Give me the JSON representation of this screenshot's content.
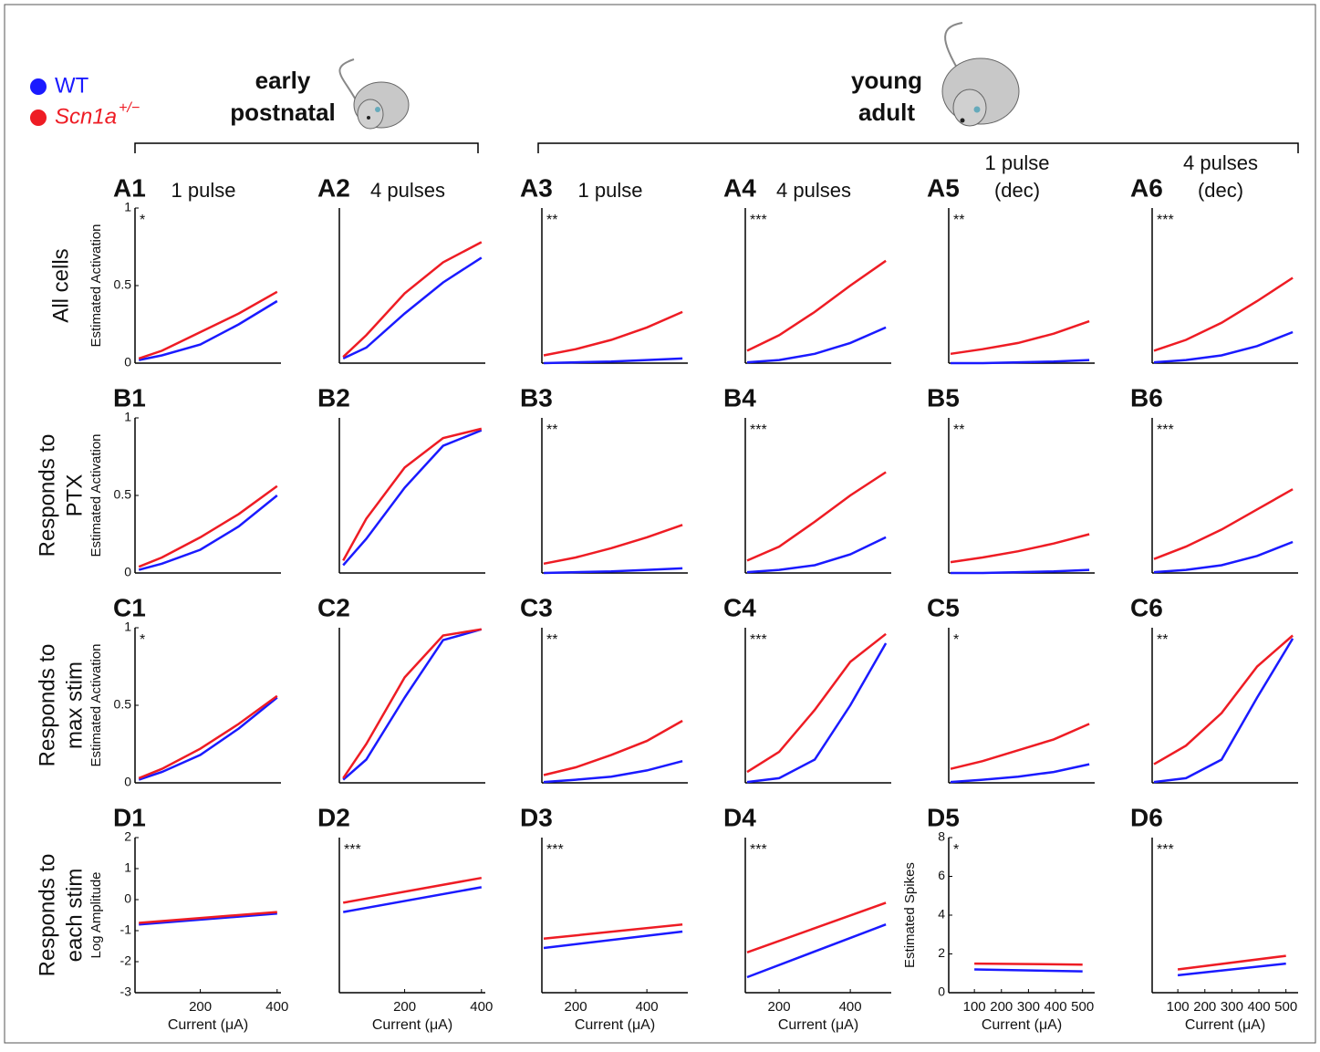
{
  "legend": [
    {
      "name": "WT",
      "color": "#1a1aff"
    },
    {
      "name": "Scn1a",
      "sup": "+/−",
      "color": "#ee1c24"
    }
  ],
  "groups": [
    {
      "label": [
        "early",
        "postnatal"
      ]
    },
    {
      "label": [
        "young",
        "adult"
      ]
    }
  ],
  "row_labels": [
    [
      "All cells"
    ],
    [
      "Responds to",
      "PTX"
    ],
    [
      "Responds to",
      "max stim"
    ],
    [
      "Responds to",
      "each stim"
    ]
  ],
  "chart_data": [
    {
      "type": "line",
      "label": "A1",
      "subtitle": [
        "1 pulse"
      ],
      "annotation": "*",
      "ylabel": "Estimated Activation",
      "x": [
        40,
        100,
        200,
        300,
        400
      ],
      "xlim": [
        30,
        410
      ],
      "ylim": [
        0,
        1
      ],
      "yticks": [
        0,
        0.5,
        1
      ],
      "series": [
        {
          "color": "#1a1aff",
          "values": [
            0.02,
            0.05,
            0.12,
            0.25,
            0.4
          ]
        },
        {
          "color": "#ee1c24",
          "values": [
            0.03,
            0.08,
            0.2,
            0.32,
            0.46
          ]
        }
      ]
    },
    {
      "type": "line",
      "label": "A2",
      "subtitle": [
        "4 pulses"
      ],
      "x": [
        40,
        100,
        200,
        300,
        400
      ],
      "xlim": [
        30,
        410
      ],
      "ylim": [
        0,
        1
      ],
      "series": [
        {
          "color": "#1a1aff",
          "values": [
            0.03,
            0.1,
            0.32,
            0.52,
            0.68
          ]
        },
        {
          "color": "#ee1c24",
          "values": [
            0.04,
            0.18,
            0.45,
            0.65,
            0.78
          ]
        }
      ]
    },
    {
      "type": "line",
      "label": "A3",
      "subtitle": [
        "1 pulse"
      ],
      "annotation": "**",
      "x": [
        110,
        200,
        300,
        400,
        500
      ],
      "xlim": [
        105,
        515
      ],
      "ylim": [
        0,
        1
      ],
      "series": [
        {
          "color": "#1a1aff",
          "values": [
            0,
            0.005,
            0.01,
            0.02,
            0.03
          ]
        },
        {
          "color": "#ee1c24",
          "values": [
            0.05,
            0.09,
            0.15,
            0.23,
            0.33
          ]
        }
      ]
    },
    {
      "type": "line",
      "label": "A4",
      "subtitle": [
        "4 pulses"
      ],
      "annotation": "***",
      "x": [
        110,
        200,
        300,
        400,
        500
      ],
      "xlim": [
        105,
        515
      ],
      "ylim": [
        0,
        1
      ],
      "series": [
        {
          "color": "#1a1aff",
          "values": [
            0.005,
            0.02,
            0.06,
            0.13,
            0.23
          ]
        },
        {
          "color": "#ee1c24",
          "values": [
            0.08,
            0.18,
            0.33,
            0.5,
            0.66
          ]
        }
      ]
    },
    {
      "type": "line",
      "label": "A5",
      "subtitle": [
        "1 pulse",
        "(dec)"
      ],
      "annotation": "**",
      "x": [
        110,
        200,
        300,
        400,
        500
      ],
      "xlim": [
        105,
        515
      ],
      "ylim": [
        0,
        1
      ],
      "series": [
        {
          "color": "#1a1aff",
          "values": [
            0,
            0,
            0.005,
            0.01,
            0.02
          ]
        },
        {
          "color": "#ee1c24",
          "values": [
            0.06,
            0.09,
            0.13,
            0.19,
            0.27
          ]
        }
      ]
    },
    {
      "type": "line",
      "label": "A6",
      "subtitle": [
        "4 pulses",
        "(dec)"
      ],
      "annotation": "***",
      "x": [
        110,
        200,
        300,
        400,
        500
      ],
      "xlim": [
        105,
        515
      ],
      "ylim": [
        0,
        1
      ],
      "series": [
        {
          "color": "#1a1aff",
          "values": [
            0.005,
            0.02,
            0.05,
            0.11,
            0.2
          ]
        },
        {
          "color": "#ee1c24",
          "values": [
            0.08,
            0.15,
            0.26,
            0.4,
            0.55
          ]
        }
      ]
    },
    {
      "type": "line",
      "label": "B1",
      "ylabel": "Estimated Activation",
      "x": [
        40,
        100,
        200,
        300,
        400
      ],
      "xlim": [
        30,
        410
      ],
      "ylim": [
        0,
        1
      ],
      "yticks": [
        0,
        0.5,
        1
      ],
      "series": [
        {
          "color": "#1a1aff",
          "values": [
            0.02,
            0.06,
            0.15,
            0.3,
            0.5
          ]
        },
        {
          "color": "#ee1c24",
          "values": [
            0.04,
            0.1,
            0.23,
            0.38,
            0.56
          ]
        }
      ]
    },
    {
      "type": "line",
      "label": "B2",
      "x": [
        40,
        100,
        200,
        300,
        400
      ],
      "xlim": [
        30,
        410
      ],
      "ylim": [
        0,
        1
      ],
      "series": [
        {
          "color": "#1a1aff",
          "values": [
            0.05,
            0.22,
            0.55,
            0.82,
            0.92
          ]
        },
        {
          "color": "#ee1c24",
          "values": [
            0.08,
            0.35,
            0.68,
            0.87,
            0.93
          ]
        }
      ]
    },
    {
      "type": "line",
      "label": "B3",
      "annotation": "**",
      "x": [
        110,
        200,
        300,
        400,
        500
      ],
      "xlim": [
        105,
        515
      ],
      "ylim": [
        0,
        1
      ],
      "series": [
        {
          "color": "#1a1aff",
          "values": [
            0,
            0.005,
            0.01,
            0.02,
            0.03
          ]
        },
        {
          "color": "#ee1c24",
          "values": [
            0.06,
            0.1,
            0.16,
            0.23,
            0.31
          ]
        }
      ]
    },
    {
      "type": "line",
      "label": "B4",
      "annotation": "***",
      "x": [
        110,
        200,
        300,
        400,
        500
      ],
      "xlim": [
        105,
        515
      ],
      "ylim": [
        0,
        1
      ],
      "series": [
        {
          "color": "#1a1aff",
          "values": [
            0.005,
            0.02,
            0.05,
            0.12,
            0.23
          ]
        },
        {
          "color": "#ee1c24",
          "values": [
            0.08,
            0.17,
            0.33,
            0.5,
            0.65
          ]
        }
      ]
    },
    {
      "type": "line",
      "label": "B5",
      "annotation": "**",
      "x": [
        110,
        200,
        300,
        400,
        500
      ],
      "xlim": [
        105,
        515
      ],
      "ylim": [
        0,
        1
      ],
      "series": [
        {
          "color": "#1a1aff",
          "values": [
            0,
            0,
            0.005,
            0.01,
            0.02
          ]
        },
        {
          "color": "#ee1c24",
          "values": [
            0.07,
            0.1,
            0.14,
            0.19,
            0.25
          ]
        }
      ]
    },
    {
      "type": "line",
      "label": "B6",
      "annotation": "***",
      "x": [
        110,
        200,
        300,
        400,
        500
      ],
      "xlim": [
        105,
        515
      ],
      "ylim": [
        0,
        1
      ],
      "series": [
        {
          "color": "#1a1aff",
          "values": [
            0.005,
            0.02,
            0.05,
            0.11,
            0.2
          ]
        },
        {
          "color": "#ee1c24",
          "values": [
            0.09,
            0.17,
            0.28,
            0.41,
            0.54
          ]
        }
      ]
    },
    {
      "type": "line",
      "label": "C1",
      "annotation": "*",
      "ylabel": "Estimated Activation",
      "x": [
        40,
        100,
        200,
        300,
        400
      ],
      "xlim": [
        30,
        410
      ],
      "ylim": [
        0,
        1
      ],
      "yticks": [
        0,
        0.5,
        1
      ],
      "series": [
        {
          "color": "#1a1aff",
          "values": [
            0.02,
            0.07,
            0.18,
            0.35,
            0.55
          ]
        },
        {
          "color": "#ee1c24",
          "values": [
            0.03,
            0.09,
            0.22,
            0.38,
            0.56
          ]
        }
      ]
    },
    {
      "type": "line",
      "label": "C2",
      "x": [
        40,
        100,
        200,
        300,
        400
      ],
      "xlim": [
        30,
        410
      ],
      "ylim": [
        0,
        1
      ],
      "series": [
        {
          "color": "#1a1aff",
          "values": [
            0.02,
            0.15,
            0.55,
            0.92,
            0.99
          ]
        },
        {
          "color": "#ee1c24",
          "values": [
            0.03,
            0.25,
            0.68,
            0.95,
            0.99
          ]
        }
      ]
    },
    {
      "type": "line",
      "label": "C3",
      "annotation": "**",
      "x": [
        110,
        200,
        300,
        400,
        500
      ],
      "xlim": [
        105,
        515
      ],
      "ylim": [
        0,
        1
      ],
      "series": [
        {
          "color": "#1a1aff",
          "values": [
            0.005,
            0.02,
            0.04,
            0.08,
            0.14
          ]
        },
        {
          "color": "#ee1c24",
          "values": [
            0.05,
            0.1,
            0.18,
            0.27,
            0.4
          ]
        }
      ]
    },
    {
      "type": "line",
      "label": "C4",
      "annotation": "***",
      "x": [
        110,
        200,
        300,
        400,
        500
      ],
      "xlim": [
        105,
        515
      ],
      "ylim": [
        0,
        1
      ],
      "series": [
        {
          "color": "#1a1aff",
          "values": [
            0.005,
            0.03,
            0.15,
            0.5,
            0.9
          ]
        },
        {
          "color": "#ee1c24",
          "values": [
            0.07,
            0.2,
            0.47,
            0.78,
            0.96
          ]
        }
      ]
    },
    {
      "type": "line",
      "label": "C5",
      "annotation": "*",
      "x": [
        110,
        200,
        300,
        400,
        500
      ],
      "xlim": [
        105,
        515
      ],
      "ylim": [
        0,
        1
      ],
      "series": [
        {
          "color": "#1a1aff",
          "values": [
            0.005,
            0.02,
            0.04,
            0.07,
            0.12
          ]
        },
        {
          "color": "#ee1c24",
          "values": [
            0.09,
            0.14,
            0.21,
            0.28,
            0.38
          ]
        }
      ]
    },
    {
      "type": "line",
      "label": "C6",
      "annotation": "**",
      "x": [
        110,
        200,
        300,
        400,
        500
      ],
      "xlim": [
        105,
        515
      ],
      "ylim": [
        0,
        1
      ],
      "series": [
        {
          "color": "#1a1aff",
          "values": [
            0.005,
            0.03,
            0.15,
            0.55,
            0.93
          ]
        },
        {
          "color": "#ee1c24",
          "values": [
            0.12,
            0.24,
            0.45,
            0.75,
            0.95
          ]
        }
      ]
    },
    {
      "type": "line",
      "label": "D1",
      "ylabel": "Log Amplitude",
      "xlabel": "Current (μA)",
      "x": [
        40,
        400
      ],
      "xlim": [
        30,
        410
      ],
      "ylim": [
        -3,
        2
      ],
      "yticks": [
        -3,
        -2,
        -1,
        0,
        1,
        2
      ],
      "xticks": [
        200,
        400
      ],
      "series": [
        {
          "color": "#1a1aff",
          "values": [
            -0.8,
            -0.45
          ]
        },
        {
          "color": "#ee1c24",
          "values": [
            -0.75,
            -0.4
          ]
        }
      ]
    },
    {
      "type": "line",
      "label": "D2",
      "annotation": "***",
      "xlabel": "Current (μA)",
      "x": [
        40,
        400
      ],
      "xlim": [
        30,
        410
      ],
      "ylim": [
        -3,
        2
      ],
      "xticks": [
        200,
        400
      ],
      "series": [
        {
          "color": "#1a1aff",
          "values": [
            -0.4,
            0.4
          ]
        },
        {
          "color": "#ee1c24",
          "values": [
            -0.1,
            0.7
          ]
        }
      ]
    },
    {
      "type": "line",
      "label": "D3",
      "annotation": "***",
      "xlabel": "Current (μA)",
      "x": [
        110,
        500
      ],
      "xlim": [
        105,
        515
      ],
      "ylim": [
        -3,
        2
      ],
      "xticks": [
        200,
        400
      ],
      "series": [
        {
          "color": "#1a1aff",
          "values": [
            -1.56,
            -1.03
          ]
        },
        {
          "color": "#ee1c24",
          "values": [
            -1.26,
            -0.8
          ]
        }
      ]
    },
    {
      "type": "line",
      "label": "D4",
      "annotation": "***",
      "xlabel": "Current (μA)",
      "x": [
        110,
        500
      ],
      "xlim": [
        105,
        515
      ],
      "ylim": [
        -3,
        2
      ],
      "xticks": [
        200,
        400
      ],
      "series": [
        {
          "color": "#1a1aff",
          "values": [
            -2.5,
            -0.8
          ]
        },
        {
          "color": "#ee1c24",
          "values": [
            -1.7,
            -0.1
          ]
        }
      ]
    },
    {
      "type": "line",
      "label": "D5",
      "annotation": "*",
      "ylabel": "Estimated Spikes",
      "xlabel": "Current (μA)",
      "x": [
        100,
        500
      ],
      "xlim": [
        5,
        545
      ],
      "ylim": [
        0,
        8
      ],
      "yticks": [
        0,
        2,
        4,
        6,
        8
      ],
      "xticks": [
        100,
        200,
        300,
        400,
        500
      ],
      "series": [
        {
          "color": "#1a1aff",
          "values": [
            1.2,
            1.1
          ]
        },
        {
          "color": "#ee1c24",
          "values": [
            1.5,
            1.45
          ]
        }
      ]
    },
    {
      "type": "line",
      "label": "D6",
      "annotation": "***",
      "xlabel": "Current (μA)",
      "x": [
        100,
        500
      ],
      "xlim": [
        5,
        545
      ],
      "ylim": [
        0,
        8
      ],
      "xticks": [
        100,
        200,
        300,
        400,
        500
      ],
      "series": [
        {
          "color": "#1a1aff",
          "values": [
            0.9,
            1.5
          ]
        },
        {
          "color": "#ee1c24",
          "values": [
            1.2,
            1.9
          ]
        }
      ]
    }
  ]
}
